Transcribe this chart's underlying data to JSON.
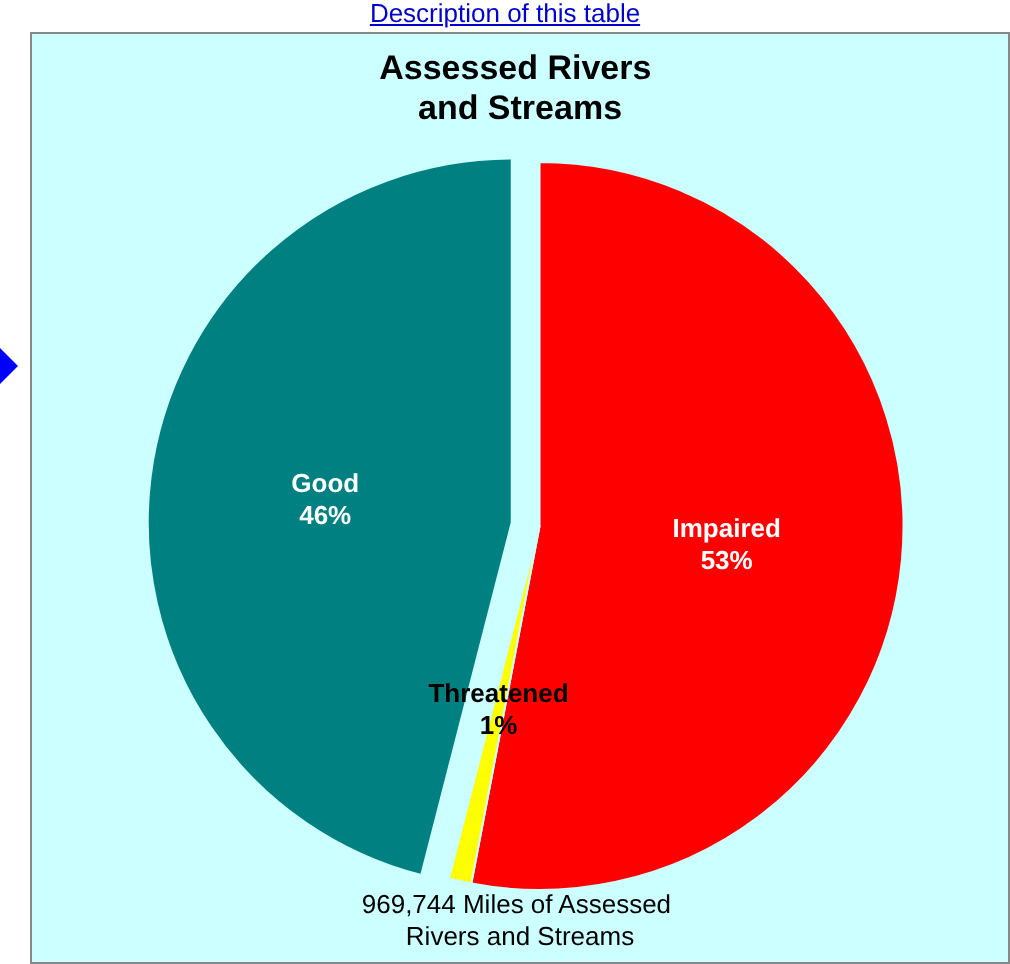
{
  "chart_data": {
    "type": "pie",
    "title": "Assessed Rivers and Streams",
    "categories": [
      "Impaired",
      "Threatened",
      "Good"
    ],
    "values": [
      53,
      1,
      46
    ],
    "colors": [
      "#ff0000",
      "#ffff00",
      "#008080"
    ],
    "value_labels": [
      "53%",
      "1%",
      "46%"
    ],
    "legend": false,
    "annotations": [
      "Description of this table",
      "969,744 Miles of Assessed Rivers and Streams"
    ]
  }
}
